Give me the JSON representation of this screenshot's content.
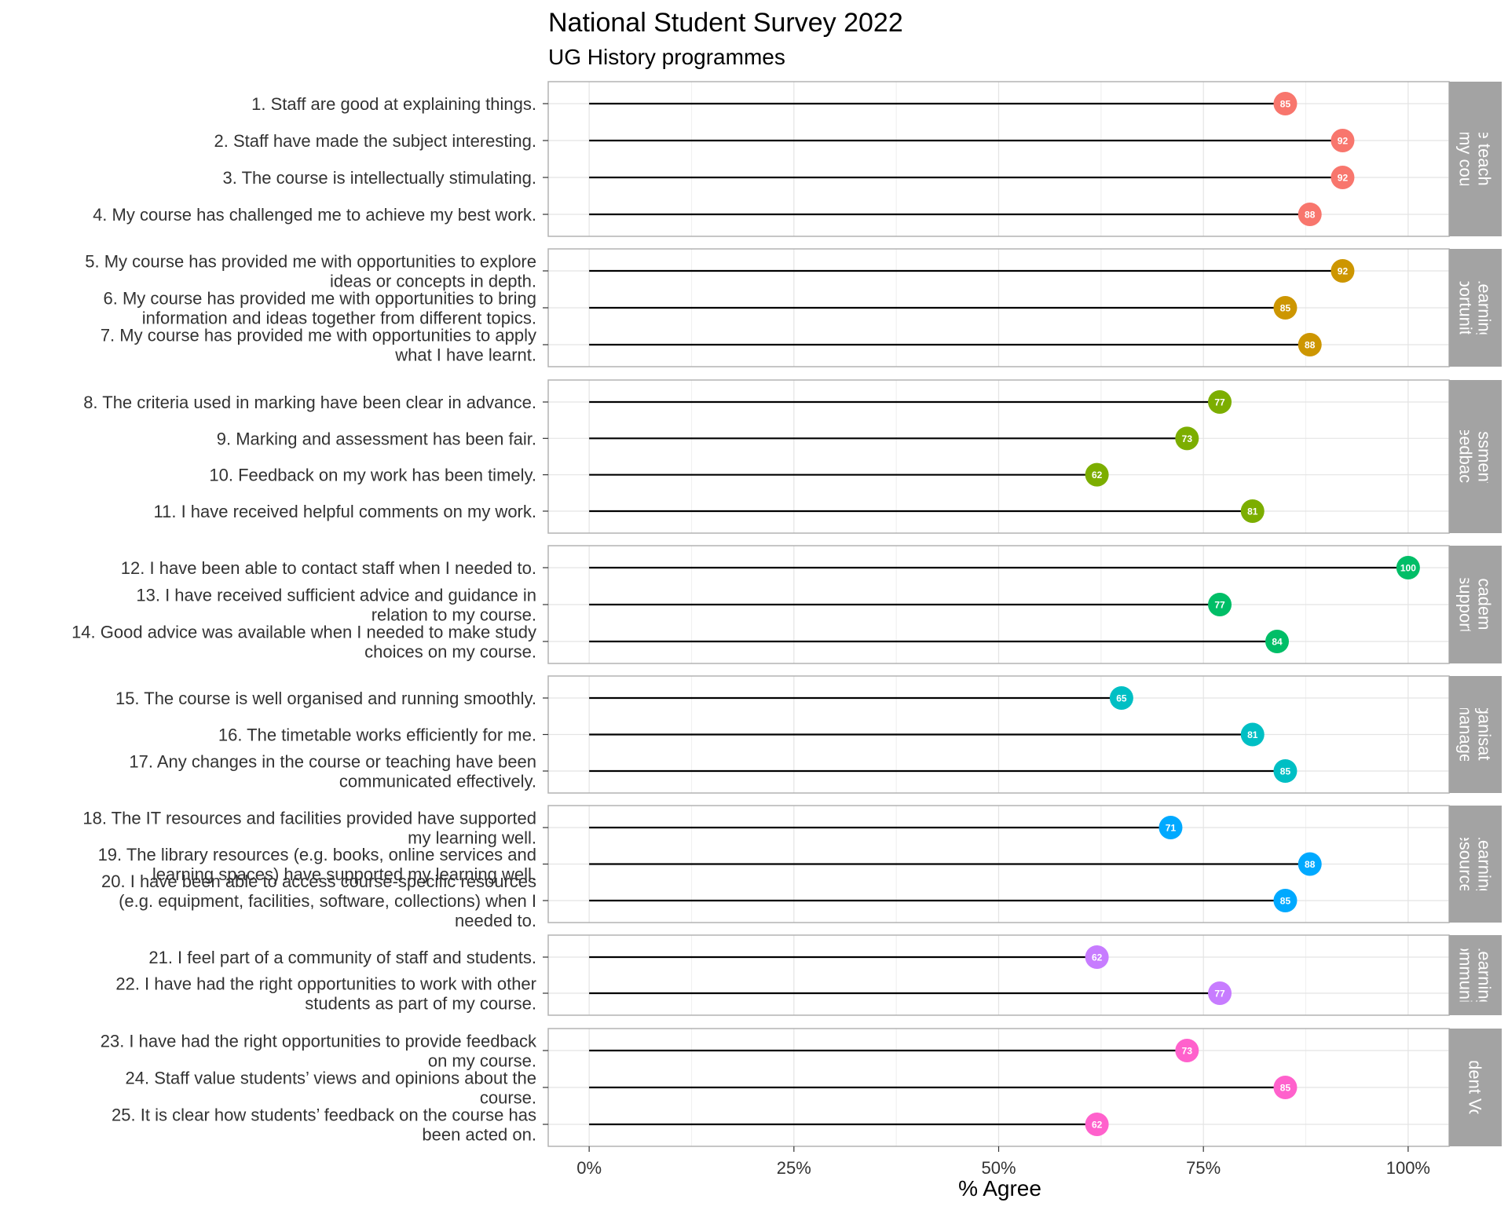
{
  "chart_data": {
    "type": "lollipop",
    "title": "National Student Survey 2022",
    "subtitle": "UG History programmes",
    "xlabel": "% Agree",
    "xlim": [
      -5,
      105
    ],
    "xticks": [
      0,
      25,
      50,
      75,
      100
    ],
    "xtick_labels": [
      "0%",
      "25%",
      "50%",
      "75%",
      "100%"
    ],
    "grid": true,
    "panels": [
      {
        "name": "The teaching on my course",
        "strip_lines": [
          "The teaching",
          "on my course"
        ],
        "color": "#F8766D",
        "items": [
          {
            "label": [
              "1. Staff are good at explaining things."
            ],
            "value": 85
          },
          {
            "label": [
              "2. Staff have made the subject interesting."
            ],
            "value": 92
          },
          {
            "label": [
              "3. The course is intellectually stimulating."
            ],
            "value": 92
          },
          {
            "label": [
              "4. My course has challenged me to achieve my best work."
            ],
            "value": 88
          }
        ]
      },
      {
        "name": "Learning opportunities",
        "strip_lines": [
          "Learning",
          "opportunities"
        ],
        "color": "#CD9600",
        "items": [
          {
            "label": [
              "5. My course has provided me with opportunities to explore",
              "ideas or concepts in depth."
            ],
            "value": 92
          },
          {
            "label": [
              "6. My course has provided me with opportunities to bring",
              "information and ideas together from different topics."
            ],
            "value": 85
          },
          {
            "label": [
              "7. My course has provided me with opportunities to apply",
              "what I have learnt."
            ],
            "value": 88
          }
        ]
      },
      {
        "name": "Assessment and feedback",
        "strip_lines": [
          "Assessment and",
          "feedback"
        ],
        "color": "#7CAE00",
        "items": [
          {
            "label": [
              "8. The criteria used in marking have been clear in advance."
            ],
            "value": 77
          },
          {
            "label": [
              "9. Marking and assessment has been fair."
            ],
            "value": 73
          },
          {
            "label": [
              "10. Feedback on my work has been timely."
            ],
            "value": 62
          },
          {
            "label": [
              "11. I have received helpful comments on my work."
            ],
            "value": 81
          }
        ]
      },
      {
        "name": "Academic support",
        "strip_lines": [
          "Academic",
          "support"
        ],
        "color": "#00BE67",
        "items": [
          {
            "label": [
              "12. I have been able to contact staff when I needed to."
            ],
            "value": 100
          },
          {
            "label": [
              "13. I have received sufficient advice and guidance in",
              "relation to my course."
            ],
            "value": 77
          },
          {
            "label": [
              "14. Good advice was available when I needed to make study",
              "choices on my course."
            ],
            "value": 84
          }
        ]
      },
      {
        "name": "Organisation and management",
        "strip_lines": [
          "Organisation",
          "and management"
        ],
        "color": "#00BFC4",
        "items": [
          {
            "label": [
              "15. The course is well organised and running smoothly."
            ],
            "value": 65
          },
          {
            "label": [
              "16. The timetable works efficiently for me."
            ],
            "value": 81
          },
          {
            "label": [
              "17. Any changes in the course or teaching have been",
              "communicated effectively."
            ],
            "value": 85
          }
        ]
      },
      {
        "name": "Learning resources",
        "strip_lines": [
          "Learning",
          "resources"
        ],
        "color": "#00A9FF",
        "items": [
          {
            "label": [
              "18. The IT resources and facilities provided have supported",
              "my learning well."
            ],
            "value": 71
          },
          {
            "label": [
              "19. The library resources (e.g. books, online services and",
              "learning spaces) have supported my learning well."
            ],
            "value": 88
          },
          {
            "label": [
              "20. I have been able to access course-specific resources",
              "(e.g. equipment, facilities, software, collections) when I",
              "needed to."
            ],
            "value": 85
          }
        ]
      },
      {
        "name": "Learning community",
        "strip_lines": [
          "Learning",
          "community"
        ],
        "color": "#C77CFF",
        "items": [
          {
            "label": [
              "21. I feel part of a community of staff and students."
            ],
            "value": 62
          },
          {
            "label": [
              "22. I have had the right opportunities to work with other",
              "students as part of my course."
            ],
            "value": 77
          }
        ]
      },
      {
        "name": "Student Voice",
        "strip_lines": [
          "Student Voice"
        ],
        "color": "#FF61CC",
        "items": [
          {
            "label": [
              "23. I have had the right opportunities to provide feedback",
              "on my course."
            ],
            "value": 73
          },
          {
            "label": [
              "24. Staff value students’ views and opinions about the",
              "course."
            ],
            "value": 85
          },
          {
            "label": [
              "25. It is clear how students’ feedback on the course has",
              "been acted on."
            ],
            "value": 62
          }
        ]
      }
    ]
  }
}
